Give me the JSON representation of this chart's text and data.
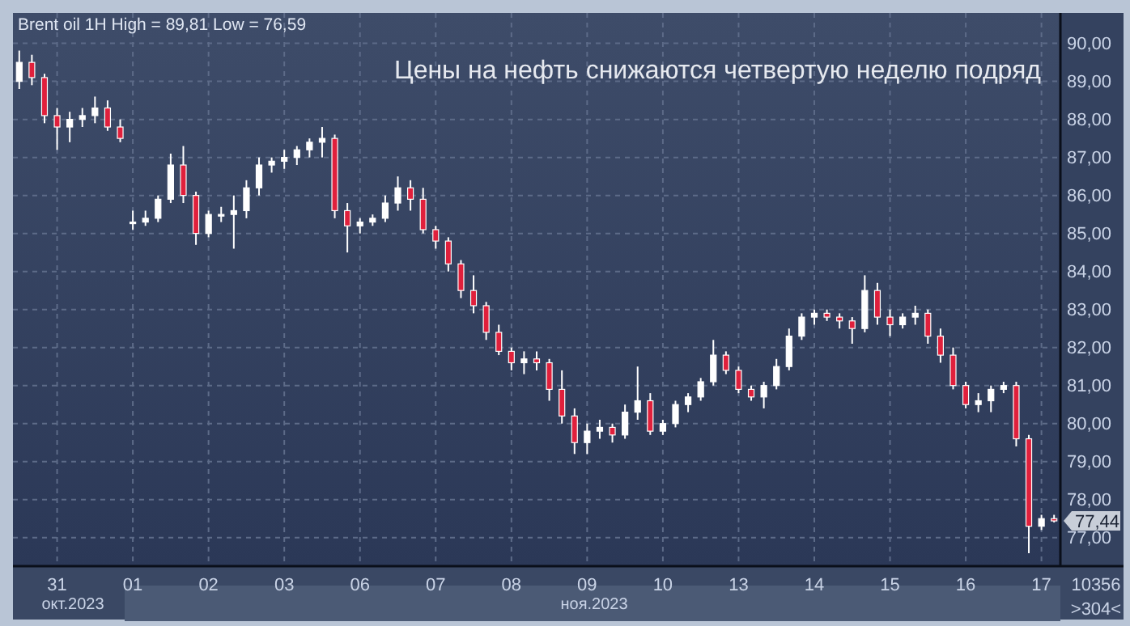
{
  "chart_data": {
    "type": "candlestick",
    "title": "Цены на нефть снижаются четвертую неделю подряд",
    "subtitle": "Brent oil 1H High = 89,81 Low = 76,59",
    "categories": [
      null,
      null,
      null,
      "31",
      null,
      null,
      null,
      null,
      null,
      "01",
      null,
      null,
      null,
      null,
      null,
      "02",
      null,
      null,
      null,
      null,
      null,
      "03",
      null,
      null,
      null,
      null,
      null,
      "06",
      null,
      null,
      null,
      null,
      null,
      "07",
      null,
      null,
      null,
      null,
      null,
      "08",
      null,
      null,
      null,
      null,
      null,
      "09",
      null,
      null,
      null,
      null,
      null,
      "10",
      null,
      null,
      null,
      null,
      null,
      "13",
      null,
      null,
      null,
      null,
      null,
      "14",
      null,
      null,
      null,
      null,
      null,
      "15",
      null,
      null,
      null,
      null,
      null,
      "16",
      null,
      null,
      null,
      null,
      null,
      "17",
      null
    ],
    "ohlc": [
      [
        89.0,
        89.81,
        88.8,
        89.5
      ],
      [
        89.5,
        89.7,
        88.9,
        89.1
      ],
      [
        89.1,
        89.2,
        87.9,
        88.1
      ],
      [
        88.1,
        88.3,
        87.2,
        87.8
      ],
      [
        87.8,
        88.2,
        87.4,
        88.0
      ],
      [
        88.0,
        88.3,
        87.8,
        88.1
      ],
      [
        88.1,
        88.6,
        87.9,
        88.3
      ],
      [
        88.3,
        88.5,
        87.7,
        87.8
      ],
      [
        87.8,
        88.0,
        87.4,
        87.5
      ],
      [
        85.3,
        85.6,
        85.1,
        85.3
      ],
      [
        85.3,
        85.6,
        85.2,
        85.4
      ],
      [
        85.4,
        86.0,
        85.3,
        85.9
      ],
      [
        85.9,
        87.1,
        85.8,
        86.8
      ],
      [
        86.8,
        87.3,
        85.8,
        86.0
      ],
      [
        86.0,
        86.1,
        84.7,
        85.0
      ],
      [
        85.0,
        85.6,
        84.9,
        85.5
      ],
      [
        85.5,
        85.7,
        85.3,
        85.5
      ],
      [
        85.5,
        86.0,
        84.6,
        85.6
      ],
      [
        85.6,
        86.4,
        85.4,
        86.2
      ],
      [
        86.2,
        87.0,
        86.0,
        86.8
      ],
      [
        86.8,
        87.0,
        86.6,
        86.9
      ],
      [
        86.9,
        87.2,
        86.7,
        87.0
      ],
      [
        87.0,
        87.3,
        86.8,
        87.2
      ],
      [
        87.2,
        87.5,
        87.0,
        87.4
      ],
      [
        87.4,
        87.8,
        87.0,
        87.5
      ],
      [
        87.5,
        87.6,
        85.4,
        85.6
      ],
      [
        85.6,
        85.8,
        84.5,
        85.2
      ],
      [
        85.2,
        85.4,
        85.0,
        85.3
      ],
      [
        85.3,
        85.5,
        85.2,
        85.4
      ],
      [
        85.4,
        86.0,
        85.3,
        85.8
      ],
      [
        85.8,
        86.5,
        85.6,
        86.2
      ],
      [
        86.2,
        86.4,
        85.6,
        85.9
      ],
      [
        85.9,
        86.2,
        85.0,
        85.1
      ],
      [
        85.1,
        85.2,
        84.6,
        84.8
      ],
      [
        84.8,
        84.9,
        84.0,
        84.2
      ],
      [
        84.2,
        84.3,
        83.3,
        83.5
      ],
      [
        83.5,
        83.9,
        82.9,
        83.1
      ],
      [
        83.1,
        83.2,
        82.2,
        82.4
      ],
      [
        82.4,
        82.6,
        81.8,
        81.9
      ],
      [
        81.9,
        82.0,
        81.4,
        81.6
      ],
      [
        81.6,
        81.9,
        81.3,
        81.7
      ],
      [
        81.7,
        81.9,
        81.4,
        81.6
      ],
      [
        81.6,
        81.7,
        80.6,
        80.9
      ],
      [
        80.9,
        81.4,
        80.0,
        80.2
      ],
      [
        80.2,
        80.4,
        79.2,
        79.5
      ],
      [
        79.5,
        80.0,
        79.2,
        79.8
      ],
      [
        79.8,
        80.1,
        79.6,
        79.9
      ],
      [
        79.9,
        80.0,
        79.5,
        79.7
      ],
      [
        79.7,
        80.5,
        79.6,
        80.3
      ],
      [
        80.3,
        81.5,
        80.1,
        80.6
      ],
      [
        80.6,
        80.8,
        79.7,
        79.8
      ],
      [
        79.8,
        80.1,
        79.7,
        80.0
      ],
      [
        80.0,
        80.6,
        79.9,
        80.5
      ],
      [
        80.5,
        80.8,
        80.3,
        80.7
      ],
      [
        80.7,
        81.2,
        80.6,
        81.1
      ],
      [
        81.1,
        82.2,
        81.0,
        81.8
      ],
      [
        81.8,
        81.9,
        81.3,
        81.4
      ],
      [
        81.4,
        81.5,
        80.8,
        80.9
      ],
      [
        80.9,
        81.0,
        80.6,
        80.7
      ],
      [
        80.7,
        81.1,
        80.4,
        81.0
      ],
      [
        81.0,
        81.7,
        80.9,
        81.5
      ],
      [
        81.5,
        82.5,
        81.4,
        82.3
      ],
      [
        82.3,
        82.9,
        82.2,
        82.8
      ],
      [
        82.8,
        83.0,
        82.6,
        82.9
      ],
      [
        82.9,
        83.0,
        82.7,
        82.8
      ],
      [
        82.8,
        82.9,
        82.5,
        82.7
      ],
      [
        82.7,
        82.8,
        82.1,
        82.5
      ],
      [
        82.5,
        83.9,
        82.4,
        83.5
      ],
      [
        83.5,
        83.7,
        82.6,
        82.8
      ],
      [
        82.8,
        83.0,
        82.3,
        82.6
      ],
      [
        82.6,
        82.9,
        82.5,
        82.8
      ],
      [
        82.8,
        83.1,
        82.6,
        82.9
      ],
      [
        82.9,
        83.0,
        82.1,
        82.3
      ],
      [
        82.3,
        82.5,
        81.6,
        81.8
      ],
      [
        81.8,
        82.0,
        80.9,
        81.0
      ],
      [
        81.0,
        81.1,
        80.4,
        80.5
      ],
      [
        80.5,
        80.8,
        80.3,
        80.6
      ],
      [
        80.6,
        81.0,
        80.3,
        80.9
      ],
      [
        80.9,
        81.1,
        80.8,
        81.0
      ],
      [
        81.0,
        81.1,
        79.4,
        79.6
      ],
      [
        79.6,
        79.7,
        76.59,
        77.3
      ],
      [
        77.3,
        77.6,
        77.2,
        77.5
      ],
      [
        77.5,
        77.6,
        77.4,
        77.44
      ]
    ],
    "colors": [
      "#ffffff",
      "#e0203c",
      "#e0203c",
      "#e0203c",
      "#ffffff",
      "#ffffff",
      "#ffffff",
      "#e0203c",
      "#e0203c",
      "#ffffff",
      "#ffffff",
      "#ffffff",
      "#ffffff",
      "#e0203c",
      "#e0203c",
      "#ffffff",
      "#ffffff",
      "#ffffff",
      "#ffffff",
      "#ffffff",
      "#ffffff",
      "#ffffff",
      "#ffffff",
      "#ffffff",
      "#ffffff",
      "#e0203c",
      "#e0203c",
      "#ffffff",
      "#ffffff",
      "#ffffff",
      "#ffffff",
      "#e0203c",
      "#e0203c",
      "#e0203c",
      "#e0203c",
      "#e0203c",
      "#e0203c",
      "#e0203c",
      "#e0203c",
      "#e0203c",
      "#ffffff",
      "#e0203c",
      "#e0203c",
      "#e0203c",
      "#e0203c",
      "#ffffff",
      "#ffffff",
      "#e0203c",
      "#ffffff",
      "#ffffff",
      "#e0203c",
      "#ffffff",
      "#ffffff",
      "#ffffff",
      "#ffffff",
      "#ffffff",
      "#e0203c",
      "#e0203c",
      "#e0203c",
      "#ffffff",
      "#ffffff",
      "#ffffff",
      "#ffffff",
      "#ffffff",
      "#e0203c",
      "#e0203c",
      "#e0203c",
      "#ffffff",
      "#e0203c",
      "#e0203c",
      "#ffffff",
      "#ffffff",
      "#e0203c",
      "#e0203c",
      "#e0203c",
      "#e0203c",
      "#ffffff",
      "#ffffff",
      "#ffffff",
      "#e0203c",
      "#e0203c",
      "#ffffff",
      "#e0203c"
    ],
    "ylim": [
      76.25,
      90.8
    ],
    "yticks": [
      {
        "value": 77,
        "label": "77,00"
      },
      {
        "value": 78,
        "label": "78,00"
      },
      {
        "value": 79,
        "label": "79,00"
      },
      {
        "value": 80,
        "label": "80,00"
      },
      {
        "value": 81,
        "label": "81,00"
      },
      {
        "value": 82,
        "label": "82,00"
      },
      {
        "value": 83,
        "label": "83,00"
      },
      {
        "value": 84,
        "label": "84,00"
      },
      {
        "value": 85,
        "label": "85,00"
      },
      {
        "value": 86,
        "label": "86,00"
      },
      {
        "value": 87,
        "label": "87,00"
      },
      {
        "value": 88,
        "label": "88,00"
      },
      {
        "value": 89,
        "label": "89,00"
      },
      {
        "value": 90,
        "label": "90,00"
      }
    ],
    "annotations": [
      "окт.2023",
      "ноя.2023",
      "10356",
      ">304<",
      "77,44"
    ],
    "grid": true
  }
}
